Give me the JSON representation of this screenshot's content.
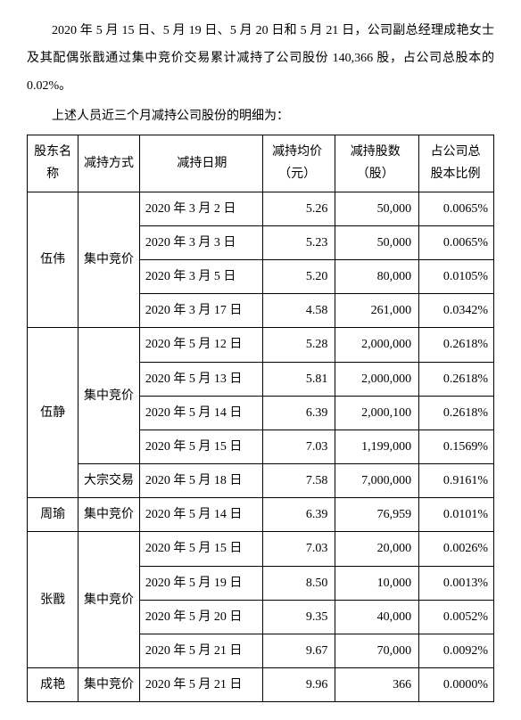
{
  "intro": {
    "p1": "2020 年 5 月 15 日、5 月 19 日、5 月 20 日和 5 月 21 日，公司副总经理成艳女士及其配偶张戬通过集中竞价交易累计减持了公司股份 140,366 股，占公司总股本的 0.02%。",
    "p2": "上述人员近三个月减持公司股份的明细为："
  },
  "table": {
    "headers": {
      "name_l1": "股东名",
      "name_l2": "称",
      "method": "减持方式",
      "date": "减持日期",
      "price_l1": "减持均价",
      "price_l2": "（元）",
      "qty_l1": "减持股数",
      "qty_l2": "（股）",
      "pct_l1": "占公司总",
      "pct_l2": "股本比例"
    },
    "rows": [
      {
        "name": "伍伟",
        "method": "集中竞价",
        "rowspan": 4,
        "methodRowspan": 4,
        "date": "2020 年 3 月 2 日",
        "price": "5.26",
        "qty": "50,000",
        "pct": "0.0065%"
      },
      {
        "date": "2020 年 3 月 3 日",
        "price": "5.23",
        "qty": "50,000",
        "pct": "0.0065%"
      },
      {
        "date": "2020 年 3 月 5 日",
        "price": "5.20",
        "qty": "80,000",
        "pct": "0.0105%"
      },
      {
        "date": "2020 年 3 月 17 日",
        "price": "4.58",
        "qty": "261,000",
        "pct": "0.0342%"
      },
      {
        "name": "伍静",
        "rowspan": 5,
        "method": "集中竞价",
        "methodRowspan": 4,
        "date": "2020 年 5 月 12 日",
        "price": "5.28",
        "qty": "2,000,000",
        "pct": "0.2618%"
      },
      {
        "date": "2020 年 5 月 13 日",
        "price": "5.81",
        "qty": "2,000,000",
        "pct": "0.2618%"
      },
      {
        "date": "2020 年 5 月 14 日",
        "price": "6.39",
        "qty": "2,000,100",
        "pct": "0.2618%"
      },
      {
        "date": "2020 年 5 月 15 日",
        "price": "7.03",
        "qty": "1,199,000",
        "pct": "0.1569%"
      },
      {
        "method": "大宗交易",
        "methodRowspan": 1,
        "date": "2020 年 5 月 18 日",
        "price": "7.58",
        "qty": "7,000,000",
        "pct": "0.9161%"
      },
      {
        "name": "周瑜",
        "rowspan": 1,
        "method": "集中竞价",
        "methodRowspan": 1,
        "date": "2020 年 5 月 14 日",
        "price": "6.39",
        "qty": "76,959",
        "pct": "0.0101%"
      },
      {
        "name": "张戬",
        "rowspan": 4,
        "method": "集中竞价",
        "methodRowspan": 4,
        "date": "2020 年 5 月 15 日",
        "price": "7.03",
        "qty": "20,000",
        "pct": "0.0026%"
      },
      {
        "date": "2020 年 5 月 19 日",
        "price": "8.50",
        "qty": "10,000",
        "pct": "0.0013%"
      },
      {
        "date": "2020 年 5 月 20 日",
        "price": "9.35",
        "qty": "40,000",
        "pct": "0.0052%"
      },
      {
        "date": "2020 年 5 月 21 日",
        "price": "9.67",
        "qty": "70,000",
        "pct": "0.0092%"
      },
      {
        "name": "成艳",
        "rowspan": 1,
        "method": "集中竞价",
        "methodRowspan": 1,
        "date": "2020 年 5 月 21 日",
        "price": "9.96",
        "qty": "366",
        "pct": "0.0000%"
      }
    ]
  },
  "style": {
    "background": "#ffffff",
    "text_color": "#000000",
    "border_color": "#000000",
    "font_size_body": 14
  }
}
